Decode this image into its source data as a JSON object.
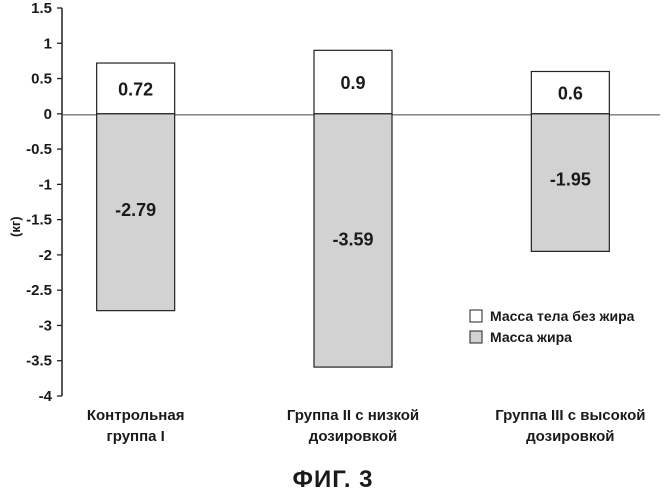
{
  "chart_data": {
    "type": "bar",
    "stacked": false,
    "categories": [
      [
        "Контрольная",
        "группа I"
      ],
      [
        "Группа II с низкой",
        "дозировкой"
      ],
      [
        "Группа III с высокой",
        "дозировкой"
      ]
    ],
    "series": [
      {
        "name": "Масса тела без жира",
        "values": [
          0.72,
          0.9,
          0.6
        ],
        "color": "#ffffff",
        "labels": [
          "0.72",
          "0.9",
          "0.6"
        ]
      },
      {
        "name": "Масса жира",
        "values": [
          -2.79,
          -3.59,
          -1.95
        ],
        "color": "#d2d2d2",
        "labels": [
          "-2.79",
          "-3.59",
          "-1.95"
        ]
      }
    ],
    "ylabel": "(кг)",
    "xlabel": "",
    "ylim": [
      -4,
      1.5
    ],
    "yticks": [
      "1.5",
      "1",
      "0.5",
      "0",
      "-0.5",
      "-1",
      "-1.5",
      "-2",
      "-2.5",
      "-3",
      "-3.5",
      "-4"
    ],
    "legend_position": "bottom-right",
    "grid": false
  },
  "caption": "ФИГ. 3"
}
